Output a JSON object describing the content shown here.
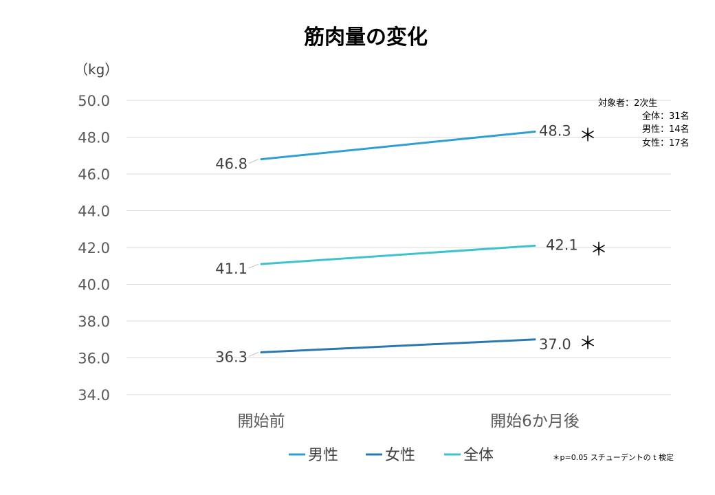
{
  "chart_data": {
    "type": "line",
    "title": "筋肉量の変化",
    "ylabel": "（kg）",
    "ylim": [
      34.0,
      50.0
    ],
    "ystep": 2.0,
    "yticks": [
      "34.0",
      "36.0",
      "38.0",
      "40.0",
      "42.0",
      "44.0",
      "46.0",
      "48.0",
      "50.0"
    ],
    "categories": [
      "開始前",
      "開始6か月後"
    ],
    "series": [
      {
        "name": "男性",
        "values": [
          46.8,
          48.3
        ],
        "labels": [
          "46.8",
          "48.3"
        ],
        "color": "#2e9fd3",
        "marker": "＊"
      },
      {
        "name": "女性",
        "values": [
          36.3,
          37.0
        ],
        "labels": [
          "36.3",
          "37.0"
        ],
        "color": "#2b78b0",
        "marker": "＊"
      },
      {
        "name": "全体",
        "values": [
          41.1,
          42.1
        ],
        "labels": [
          "41.1",
          "42.1"
        ],
        "color": "#3cc3cf",
        "marker": "＊"
      }
    ],
    "legend_position": "bottom",
    "grid": true,
    "note_lines": [
      "対象者：2次生",
      "全体：31名",
      "男性：14名",
      "女性：17名"
    ],
    "footnote": "＊p=0.05 スチューデントの t 検定"
  }
}
